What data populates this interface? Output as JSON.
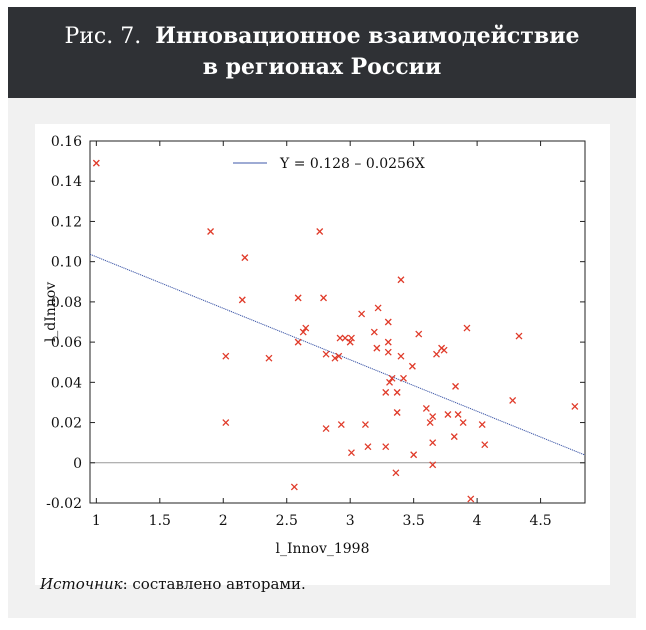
{
  "figure": {
    "label": "Рис. 7.",
    "title_line1": "Инновационное взаимодействие",
    "title_line2": "в регионах России"
  },
  "source": {
    "label": "Источник",
    "text": ": составлено авторами."
  },
  "chart_data": {
    "type": "scatter",
    "xlabel": "l_Innov_1998",
    "ylabel": "l_dInnov",
    "xlim": [
      0.95,
      4.85
    ],
    "ylim": [
      -0.02,
      0.16
    ],
    "xticks": [
      "1",
      "1.5",
      "2",
      "2.5",
      "3",
      "3.5",
      "4",
      "4.5"
    ],
    "yticks": [
      "-0.02",
      "0",
      "0.02",
      "0.04",
      "0.06",
      "0.08",
      "0.10",
      "0.12",
      "0.14",
      "0.16"
    ],
    "legend": "Y = 0.128 – 0.0256X",
    "legend_position": "top",
    "zero_line": true,
    "regression": {
      "intercept": 0.128,
      "slope": -0.0256
    },
    "marker_color": "#e03b2a",
    "line_color": "#3d57a8",
    "points": [
      [
        1.0,
        0.149
      ],
      [
        1.9,
        0.115
      ],
      [
        2.02,
        0.053
      ],
      [
        2.02,
        0.02
      ],
      [
        2.15,
        0.081
      ],
      [
        2.17,
        0.102
      ],
      [
        2.36,
        0.052
      ],
      [
        2.56,
        -0.012
      ],
      [
        2.59,
        0.082
      ],
      [
        2.59,
        0.06
      ],
      [
        2.63,
        0.065
      ],
      [
        2.65,
        0.067
      ],
      [
        2.76,
        0.115
      ],
      [
        2.79,
        0.082
      ],
      [
        2.81,
        0.054
      ],
      [
        2.81,
        0.017
      ],
      [
        2.88,
        0.052
      ],
      [
        2.91,
        0.053
      ],
      [
        2.92,
        0.062
      ],
      [
        2.93,
        0.019
      ],
      [
        2.96,
        0.062
      ],
      [
        3.0,
        0.06
      ],
      [
        3.01,
        0.062
      ],
      [
        3.01,
        0.005
      ],
      [
        3.09,
        0.074
      ],
      [
        3.12,
        0.019
      ],
      [
        3.14,
        0.008
      ],
      [
        3.19,
        0.065
      ],
      [
        3.21,
        0.057
      ],
      [
        3.22,
        0.077
      ],
      [
        3.28,
        0.008
      ],
      [
        3.28,
        0.035
      ],
      [
        3.3,
        0.06
      ],
      [
        3.3,
        0.07
      ],
      [
        3.3,
        0.055
      ],
      [
        3.31,
        0.04
      ],
      [
        3.33,
        0.042
      ],
      [
        3.36,
        -0.005
      ],
      [
        3.37,
        0.035
      ],
      [
        3.37,
        0.025
      ],
      [
        3.4,
        0.091
      ],
      [
        3.4,
        0.053
      ],
      [
        3.42,
        0.042
      ],
      [
        3.49,
        0.048
      ],
      [
        3.5,
        0.004
      ],
      [
        3.54,
        0.064
      ],
      [
        3.6,
        0.027
      ],
      [
        3.63,
        0.02
      ],
      [
        3.65,
        0.023
      ],
      [
        3.65,
        0.01
      ],
      [
        3.65,
        -0.001
      ],
      [
        3.68,
        0.054
      ],
      [
        3.72,
        0.057
      ],
      [
        3.74,
        0.056
      ],
      [
        3.77,
        0.024
      ],
      [
        3.82,
        0.013
      ],
      [
        3.83,
        0.038
      ],
      [
        3.85,
        0.024
      ],
      [
        3.89,
        0.02
      ],
      [
        3.92,
        0.067
      ],
      [
        3.95,
        -0.018
      ],
      [
        4.04,
        0.019
      ],
      [
        4.06,
        0.009
      ],
      [
        4.28,
        0.031
      ],
      [
        4.33,
        0.063
      ],
      [
        4.77,
        0.028
      ]
    ]
  }
}
